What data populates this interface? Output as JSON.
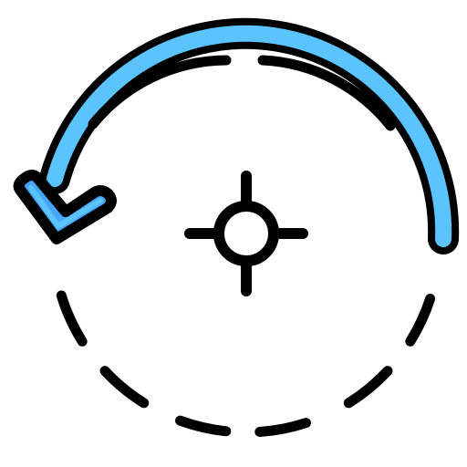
{
  "icon": {
    "name": "rotate-counterclockwise-icon",
    "colors": {
      "outline": "#000000",
      "arrow_fill": "#5bc3fd",
      "arrow_fill_dark": "#46a6f8",
      "background": "#ffffff",
      "center_fill": "#ffffff"
    },
    "parts": [
      "rotation-arrow",
      "arrow-head",
      "dashed-orbit",
      "crosshair-center"
    ]
  }
}
